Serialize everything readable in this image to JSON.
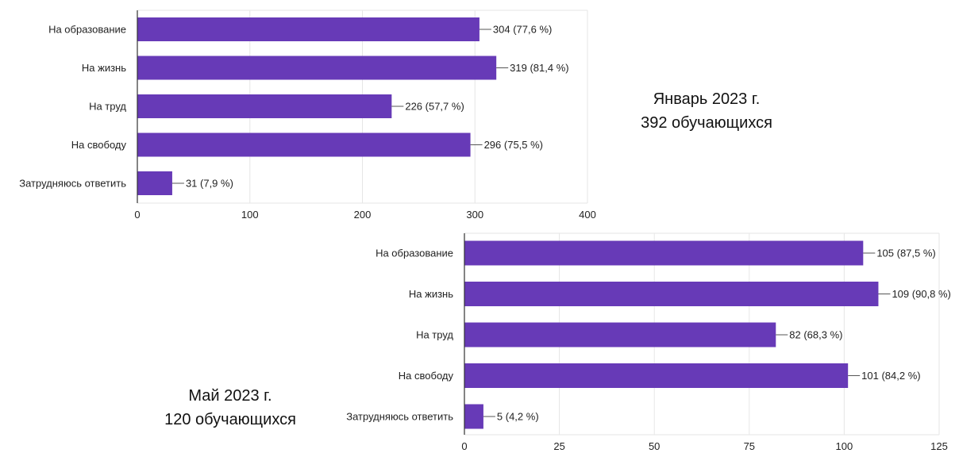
{
  "colors": {
    "bar": "#673ab7",
    "grid": "#e6e6e6",
    "axis": "#333333",
    "leader": "#555555"
  },
  "chart_data": [
    {
      "type": "bar",
      "orientation": "horizontal",
      "categories": [
        "На образование",
        "На жизнь",
        "На труд",
        "На свободу",
        "Затрудняюсь ответить"
      ],
      "values": [
        304,
        319,
        226,
        296,
        31
      ],
      "data_labels": [
        "304 (77,6 %)",
        "319 (81,4 %)",
        "226 (57,7 %)",
        "296 (75,5 %)",
        "31 (7,9 %)"
      ],
      "xlim": [
        0,
        400
      ],
      "xticks": [
        0,
        100,
        200,
        300,
        400
      ],
      "grid": true,
      "caption": [
        "Январь 2023 г.",
        "392 обучающихся"
      ]
    },
    {
      "type": "bar",
      "orientation": "horizontal",
      "categories": [
        "На образование",
        "На жизнь",
        "На труд",
        "На свободу",
        "Затрудняюсь ответить"
      ],
      "values": [
        105,
        109,
        82,
        101,
        5
      ],
      "data_labels": [
        "105 (87,5 %)",
        "109 (90,8 %)",
        "82 (68,3 %)",
        "101 (84,2 %)",
        "5 (4,2 %)"
      ],
      "xlim": [
        0,
        125
      ],
      "xticks": [
        0,
        25,
        50,
        75,
        100,
        125
      ],
      "grid": true,
      "caption": [
        "Май 2023 г.",
        "120 обучающихся"
      ]
    }
  ]
}
